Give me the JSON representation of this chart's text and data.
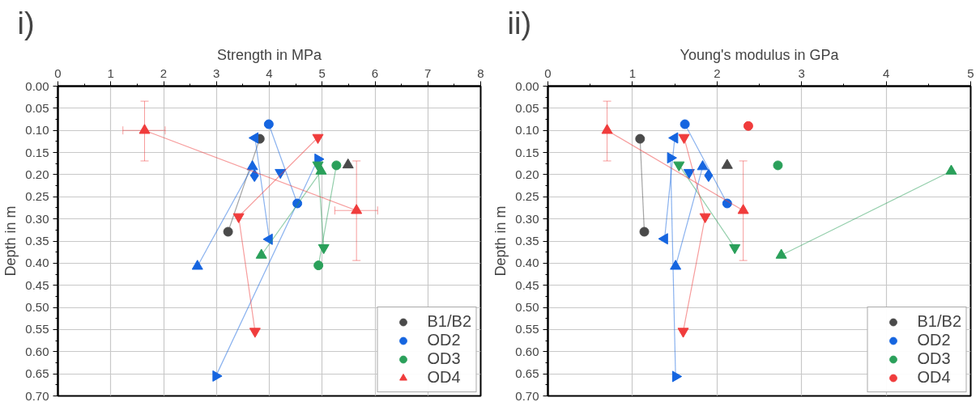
{
  "chart_data": [
    {
      "type": "line",
      "title": "i)",
      "xlabel": "Strength in MPa",
      "ylabel": "Depth in m",
      "xlim": [
        0,
        8
      ],
      "xticks": [
        0,
        1,
        2,
        3,
        4,
        5,
        6,
        7,
        8
      ],
      "ylim": [
        0.7,
        0.0
      ],
      "yticks": [
        {
          "value": 0.0,
          "label": "0.00"
        },
        {
          "value": 0.05,
          "label": "0.05"
        },
        {
          "value": 0.1,
          "label": "0.10"
        },
        {
          "value": 0.15,
          "label": "0.15"
        },
        {
          "value": 0.2,
          "label": "0.20"
        },
        {
          "value": 0.25,
          "label": "0.25"
        },
        {
          "value": 0.3,
          "label": "0.30"
        },
        {
          "value": 0.35,
          "label": "0.35"
        },
        {
          "value": 0.4,
          "label": "0.40"
        },
        {
          "value": 0.45,
          "label": "0.45"
        },
        {
          "value": 0.5,
          "label": "0.50"
        },
        {
          "value": 0.55,
          "label": "0.55"
        },
        {
          "value": 0.6,
          "label": "0.60"
        },
        {
          "value": 0.65,
          "label": "0.65"
        },
        {
          "value": 0.7,
          "label": "0.70"
        }
      ],
      "grid": true,
      "legend": "bottom right",
      "series": [
        {
          "name": "B1/B2",
          "color": "#4a4a4a",
          "marker": "circle",
          "x": [
            3.82,
            3.22
          ],
          "values": [
            0.119,
            0.329
          ]
        },
        {
          "color": "#4a4a4a",
          "marker": "triangle",
          "x": [
            5.49
          ],
          "values": [
            0.178
          ]
        },
        {
          "name": "OD2",
          "color": "#1565e0",
          "marker": "circle",
          "x": [
            3.99,
            4.53
          ],
          "values": [
            0.086,
            0.265
          ]
        },
        {
          "color": "#1565e0",
          "marker": "triangle",
          "x": [
            3.68,
            2.64
          ],
          "values": [
            0.182,
            0.407
          ]
        },
        {
          "color": "#1565e0",
          "marker": "triangle_down",
          "x": [
            4.21
          ],
          "values": [
            0.195
          ]
        },
        {
          "color": "#1565e0",
          "marker": "triangle_left",
          "x": [
            3.73,
            4.0
          ],
          "values": [
            0.117,
            0.346
          ]
        },
        {
          "color": "#1565e0",
          "marker": "diamond",
          "x": [
            3.72
          ],
          "values": [
            0.202
          ]
        },
        {
          "color": "#1565e0",
          "marker": "triangle_right",
          "x": [
            4.92,
            2.99
          ],
          "values": [
            0.165,
            0.655
          ]
        },
        {
          "name": "OD3",
          "color": "#2aa05a",
          "marker": "circle",
          "x": [
            5.27,
            4.93
          ],
          "values": [
            0.179,
            0.405
          ]
        },
        {
          "color": "#2aa05a",
          "marker": "triangle",
          "x": [
            4.98,
            3.85
          ],
          "values": [
            0.192,
            0.382
          ]
        },
        {
          "color": "#2aa05a",
          "marker": "triangle_down",
          "x": [
            4.92,
            5.03
          ],
          "values": [
            0.178,
            0.365
          ]
        },
        {
          "name": "OD4",
          "color": "#f03c3c",
          "marker": "triangle",
          "x": [
            1.64,
            5.65
          ],
          "values": [
            0.1,
            0.281
          ],
          "errors": [
            [
              0.034,
              0.169
            ],
            [
              0.169,
              0.394
            ]
          ],
          "xerrors": [
            [
              1.23,
              2.03
            ],
            [
              5.24,
              6.05
            ]
          ]
        },
        {
          "color": "#f03c3c",
          "marker": "triangle_down",
          "x": [
            4.92,
            3.42,
            3.73
          ],
          "values": [
            0.116,
            0.295,
            0.554
          ]
        }
      ]
    },
    {
      "type": "line",
      "title": "ii)",
      "xlabel": "Young's modulus in GPa",
      "ylabel": "Depth in m",
      "xlim": [
        0,
        5
      ],
      "xticks": [
        0,
        1,
        2,
        3,
        4,
        5
      ],
      "ylim": [
        0.7,
        0.0
      ],
      "yticks": [
        {
          "value": 0.0,
          "label": "0.00"
        },
        {
          "value": 0.05,
          "label": "0.05"
        },
        {
          "value": 0.1,
          "label": "0.10"
        },
        {
          "value": 0.15,
          "label": "0.15"
        },
        {
          "value": 0.2,
          "label": "0.20"
        },
        {
          "value": 0.25,
          "label": "0.25"
        },
        {
          "value": 0.3,
          "label": "0.30"
        },
        {
          "value": 0.35,
          "label": "0.35"
        },
        {
          "value": 0.4,
          "label": "0.40"
        },
        {
          "value": 0.45,
          "label": "0.45"
        },
        {
          "value": 0.5,
          "label": "0.50"
        },
        {
          "value": 0.55,
          "label": "0.55"
        },
        {
          "value": 0.6,
          "label": "0.60"
        },
        {
          "value": 0.65,
          "label": "0.65"
        },
        {
          "value": 0.7,
          "label": "0.70"
        }
      ],
      "grid": true,
      "legend": "bottom right",
      "series": [
        {
          "name": "B1/B2",
          "color": "#4a4a4a",
          "marker": "circle",
          "x": [
            1.09,
            1.14
          ],
          "values": [
            0.119,
            0.329
          ]
        },
        {
          "color": "#4a4a4a",
          "marker": "triangle",
          "x": [
            2.12
          ],
          "values": [
            0.179
          ]
        },
        {
          "name": "OD2",
          "color": "#1565e0",
          "marker": "circle",
          "x": [
            1.62,
            2.12
          ],
          "values": [
            0.086,
            0.265
          ]
        },
        {
          "color": "#1565e0",
          "marker": "triangle",
          "x": [
            1.83,
            1.51
          ],
          "values": [
            0.182,
            0.407
          ]
        },
        {
          "color": "#1565e0",
          "marker": "triangle_down",
          "x": [
            1.67
          ],
          "values": [
            0.195
          ]
        },
        {
          "color": "#1565e0",
          "marker": "triangle_left",
          "x": [
            1.5,
            1.38
          ],
          "values": [
            0.117,
            0.345
          ]
        },
        {
          "color": "#1565e0",
          "marker": "diamond",
          "x": [
            1.9
          ],
          "values": [
            0.202
          ]
        },
        {
          "color": "#1565e0",
          "marker": "triangle_right",
          "x": [
            1.45,
            1.51
          ],
          "values": [
            0.162,
            0.656
          ]
        },
        {
          "name": "OD3",
          "color": "#2aa05a",
          "marker": "circle",
          "x": [
            2.72
          ],
          "values": [
            0.179
          ]
        },
        {
          "color": "#2aa05a",
          "marker": "triangle",
          "x": [
            4.77,
            2.76
          ],
          "values": [
            0.192,
            0.382
          ]
        },
        {
          "color": "#2aa05a",
          "marker": "triangle_down",
          "x": [
            1.55,
            2.21
          ],
          "values": [
            0.178,
            0.365
          ]
        },
        {
          "name": "OD4",
          "color": "#f03c3c",
          "marker": "circle",
          "x": [
            2.37
          ],
          "values": [
            0.09
          ]
        },
        {
          "color": "#f03c3c",
          "marker": "triangle",
          "x": [
            0.7,
            2.31
          ],
          "values": [
            0.1,
            0.281
          ],
          "errors": [
            [
              0.034,
              0.169
            ],
            [
              0.169,
              0.394
            ]
          ]
        },
        {
          "color": "#f03c3c",
          "marker": "triangle_down",
          "x": [
            1.61,
            1.86,
            1.6
          ],
          "values": [
            0.116,
            0.295,
            0.554
          ]
        }
      ]
    }
  ]
}
